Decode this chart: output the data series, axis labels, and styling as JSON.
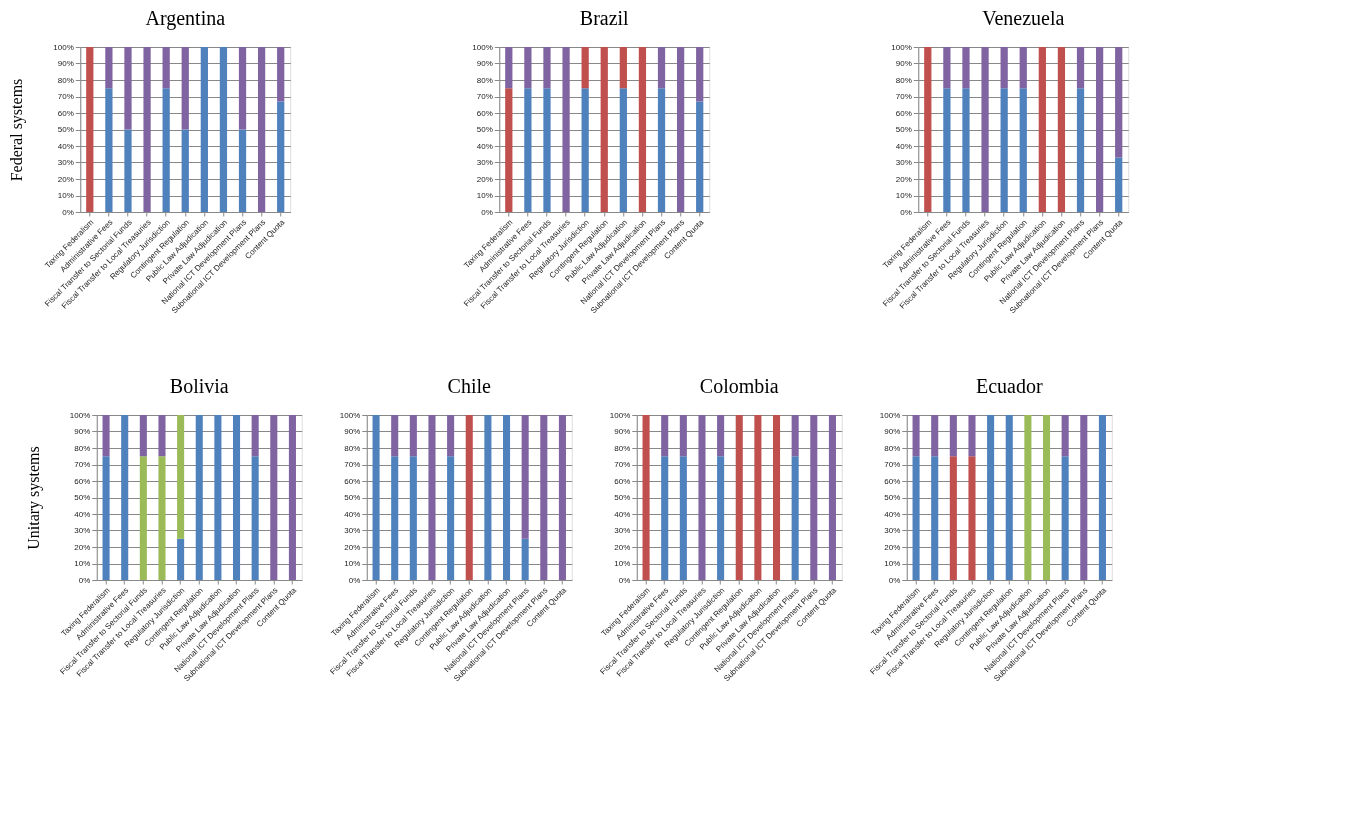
{
  "chart_data": [
    {
      "type": "bar",
      "stacked": true,
      "title": "Argentina",
      "ylabel": "Federal systems",
      "categories": [
        "Taxing Federalism",
        "Administrative Fees",
        "Fiscal Transfer to Sectorial Funds",
        "Fiscal Transfer to Local Treasuries",
        "Regulatory Jurisdiction",
        "Contingent Regulation",
        "Public Law Adjudication",
        "Private Law Adjudication",
        "National ICT Development Plans",
        "Subnational ICT Development Plans",
        "Content Quota"
      ],
      "ylim": [
        0,
        100
      ],
      "yticks": [
        {
          "value": 0,
          "label": "0%"
        },
        {
          "value": 10,
          "label": "10%"
        },
        {
          "value": 20,
          "label": "20%"
        },
        {
          "value": 30,
          "label": "30%"
        },
        {
          "value": 40,
          "label": "40%"
        },
        {
          "value": 50,
          "label": "50%"
        },
        {
          "value": 60,
          "label": "60%"
        },
        {
          "value": 70,
          "label": "70%"
        },
        {
          "value": 80,
          "label": "80%"
        },
        {
          "value": 90,
          "label": "90%"
        },
        {
          "value": 100,
          "label": "100%"
        }
      ],
      "grid": "y",
      "legend": false,
      "series": [
        {
          "color": "#4f81bd",
          "values": [
            null,
            75,
            50,
            null,
            75,
            50,
            100,
            100,
            50,
            null,
            67
          ]
        },
        {
          "color": "#c0504d",
          "values": [
            100,
            null,
            null,
            null,
            null,
            null,
            null,
            null,
            null,
            null,
            null
          ]
        },
        {
          "color": "#8064a2",
          "values": [
            null,
            25,
            50,
            100,
            25,
            50,
            null,
            null,
            50,
            100,
            33
          ]
        }
      ]
    },
    {
      "type": "bar",
      "stacked": true,
      "title": "Brazil",
      "categories": [
        "Taxing Federalism",
        "Administrative Fees",
        "Fiscal Transfer to Sectorial Funds",
        "Fiscal Transfer to Local Treasuries",
        "Regulatory Jurisdiction",
        "Contingent Regulation",
        "Public Law Adjudication",
        "Private Law Adjudication",
        "National ICT Development Plans",
        "Subnational ICT Development Plans",
        "Content Quota"
      ],
      "ylim": [
        0,
        100
      ],
      "yticks": [
        {
          "value": 0,
          "label": "0%"
        },
        {
          "value": 10,
          "label": "10%"
        },
        {
          "value": 20,
          "label": "20%"
        },
        {
          "value": 30,
          "label": "30%"
        },
        {
          "value": 40,
          "label": "40%"
        },
        {
          "value": 50,
          "label": "50%"
        },
        {
          "value": 60,
          "label": "60%"
        },
        {
          "value": 70,
          "label": "70%"
        },
        {
          "value": 80,
          "label": "80%"
        },
        {
          "value": 90,
          "label": "90%"
        },
        {
          "value": 100,
          "label": "100%"
        }
      ],
      "grid": "y",
      "legend": false,
      "series": [
        {
          "color": "#4f81bd",
          "values": [
            null,
            75,
            75,
            null,
            75,
            null,
            75,
            null,
            75,
            null,
            67
          ]
        },
        {
          "color": "#c0504d",
          "values": [
            75,
            null,
            null,
            null,
            25,
            100,
            25,
            100,
            null,
            null,
            null
          ]
        },
        {
          "color": "#8064a2",
          "values": [
            25,
            25,
            25,
            100,
            null,
            null,
            null,
            null,
            25,
            100,
            33
          ]
        }
      ]
    },
    {
      "type": "bar",
      "stacked": true,
      "title": "Venezuela",
      "categories": [
        "Taxing Federalism",
        "Administrative Fees",
        "Fiscal Transfer to Sectorial Funds",
        "Fiscal Transfer to Local Treasuries",
        "Regulatory Jurisdiction",
        "Contingent Regulation",
        "Public Law Adjudication",
        "Private Law Adjudication",
        "National ICT Development Plans",
        "Subnational ICT Development Plans",
        "Content Quota"
      ],
      "ylim": [
        0,
        100
      ],
      "yticks": [
        {
          "value": 0,
          "label": "0%"
        },
        {
          "value": 10,
          "label": "10%"
        },
        {
          "value": 20,
          "label": "20%"
        },
        {
          "value": 30,
          "label": "30%"
        },
        {
          "value": 40,
          "label": "40%"
        },
        {
          "value": 50,
          "label": "50%"
        },
        {
          "value": 60,
          "label": "60%"
        },
        {
          "value": 70,
          "label": "70%"
        },
        {
          "value": 80,
          "label": "80%"
        },
        {
          "value": 90,
          "label": "90%"
        },
        {
          "value": 100,
          "label": "100%"
        }
      ],
      "grid": "y",
      "legend": false,
      "series": [
        {
          "color": "#4f81bd",
          "values": [
            null,
            75,
            75,
            null,
            75,
            75,
            null,
            null,
            75,
            null,
            33
          ]
        },
        {
          "color": "#c0504d",
          "values": [
            100,
            null,
            null,
            null,
            null,
            null,
            100,
            100,
            null,
            null,
            null
          ]
        },
        {
          "color": "#8064a2",
          "values": [
            null,
            25,
            25,
            100,
            25,
            25,
            null,
            null,
            25,
            100,
            67
          ]
        }
      ]
    },
    {
      "type": "bar",
      "stacked": true,
      "title": "Bolivia",
      "ylabel": "Unitary systems",
      "categories": [
        "Taxing Federalism",
        "Administrative Fees",
        "Fiscal Transfer to Sectorial Funds",
        "Fiscal Transfer to Local Treasuries",
        "Regulatory Jurisdiction",
        "Contingent Regulation",
        "Public Law Adjudication",
        "Private Law Adjudication",
        "National ICT Development Plans",
        "Subnational ICT Development Plans",
        "Content Quota"
      ],
      "ylim": [
        0,
        100
      ],
      "yticks": [
        {
          "value": 0,
          "label": "0%"
        },
        {
          "value": 10,
          "label": "10%"
        },
        {
          "value": 20,
          "label": "20%"
        },
        {
          "value": 30,
          "label": "30%"
        },
        {
          "value": 40,
          "label": "40%"
        },
        {
          "value": 50,
          "label": "50%"
        },
        {
          "value": 60,
          "label": "60%"
        },
        {
          "value": 70,
          "label": "70%"
        },
        {
          "value": 80,
          "label": "80%"
        },
        {
          "value": 90,
          "label": "90%"
        },
        {
          "value": 100,
          "label": "100%"
        }
      ],
      "grid": "y",
      "legend": false,
      "series": [
        {
          "color": "#4f81bd",
          "values": [
            75,
            100,
            null,
            null,
            25,
            100,
            100,
            100,
            75,
            null,
            null
          ]
        },
        {
          "color": "#9bbb59",
          "values": [
            null,
            null,
            75,
            75,
            75,
            null,
            null,
            null,
            null,
            null,
            null
          ]
        },
        {
          "color": "#8064a2",
          "values": [
            25,
            null,
            25,
            25,
            null,
            null,
            null,
            null,
            25,
            100,
            100
          ]
        }
      ]
    },
    {
      "type": "bar",
      "stacked": true,
      "title": "Chile",
      "categories": [
        "Taxing Federalism",
        "Administrative Fees",
        "Fiscal Transfer to Sectorial Funds",
        "Fiscal Transfer to Local Treasuries",
        "Regulatory Jurisdiction",
        "Contingent Regulation",
        "Public Law Adjudication",
        "Private Law Adjudication",
        "National ICT Development Plans",
        "Subnational ICT Development Plans",
        "Content Quota"
      ],
      "ylim": [
        0,
        100
      ],
      "yticks": [
        {
          "value": 0,
          "label": "0%"
        },
        {
          "value": 10,
          "label": "10%"
        },
        {
          "value": 20,
          "label": "20%"
        },
        {
          "value": 30,
          "label": "30%"
        },
        {
          "value": 40,
          "label": "40%"
        },
        {
          "value": 50,
          "label": "50%"
        },
        {
          "value": 60,
          "label": "60%"
        },
        {
          "value": 70,
          "label": "70%"
        },
        {
          "value": 80,
          "label": "80%"
        },
        {
          "value": 90,
          "label": "90%"
        },
        {
          "value": 100,
          "label": "100%"
        }
      ],
      "grid": "y",
      "legend": false,
      "series": [
        {
          "color": "#4f81bd",
          "values": [
            100,
            75,
            75,
            null,
            75,
            null,
            100,
            100,
            25,
            null,
            null
          ]
        },
        {
          "color": "#c0504d",
          "values": [
            null,
            null,
            null,
            null,
            null,
            100,
            null,
            null,
            null,
            null,
            null
          ]
        },
        {
          "color": "#8064a2",
          "values": [
            null,
            25,
            25,
            100,
            25,
            null,
            null,
            null,
            75,
            100,
            100
          ]
        }
      ]
    },
    {
      "type": "bar",
      "stacked": true,
      "title": "Colombia",
      "categories": [
        "Taxing Federalism",
        "Administrative Fees",
        "Fiscal Transfer to Sectorial Funds",
        "Fiscal Transfer to Local Treasuries",
        "Regulatory Jurisdiction",
        "Contingent Regulation",
        "Public Law Adjudication",
        "Private Law Adjudication",
        "National ICT Development Plans",
        "Subnational ICT Development Plans",
        "Content Quota"
      ],
      "ylim": [
        0,
        100
      ],
      "yticks": [
        {
          "value": 0,
          "label": "0%"
        },
        {
          "value": 10,
          "label": "10%"
        },
        {
          "value": 20,
          "label": "20%"
        },
        {
          "value": 30,
          "label": "30%"
        },
        {
          "value": 40,
          "label": "40%"
        },
        {
          "value": 50,
          "label": "50%"
        },
        {
          "value": 60,
          "label": "60%"
        },
        {
          "value": 70,
          "label": "70%"
        },
        {
          "value": 80,
          "label": "80%"
        },
        {
          "value": 90,
          "label": "90%"
        },
        {
          "value": 100,
          "label": "100%"
        }
      ],
      "grid": "y",
      "legend": false,
      "series": [
        {
          "color": "#4f81bd",
          "values": [
            null,
            75,
            75,
            null,
            75,
            null,
            null,
            null,
            75,
            null,
            null
          ]
        },
        {
          "color": "#c0504d",
          "values": [
            100,
            null,
            null,
            null,
            null,
            100,
            100,
            100,
            null,
            null,
            null
          ]
        },
        {
          "color": "#8064a2",
          "values": [
            null,
            25,
            25,
            100,
            25,
            null,
            null,
            null,
            25,
            100,
            100
          ]
        }
      ]
    },
    {
      "type": "bar",
      "stacked": true,
      "title": "Ecuador",
      "categories": [
        "Taxing Federalism",
        "Administrative Fees",
        "Fiscal Transfer to Sectorial Funds",
        "Fiscal Transfer to Local Treasuries",
        "Regulatory Jurisdiction",
        "Contingent Regulation",
        "Public Law Adjudication",
        "Private Law Adjudication",
        "National ICT Development Plans",
        "Subnational ICT Development Plans",
        "Content Quota"
      ],
      "ylim": [
        0,
        100
      ],
      "yticks": [
        {
          "value": 0,
          "label": "0%"
        },
        {
          "value": 10,
          "label": "10%"
        },
        {
          "value": 20,
          "label": "20%"
        },
        {
          "value": 30,
          "label": "30%"
        },
        {
          "value": 40,
          "label": "40%"
        },
        {
          "value": 50,
          "label": "50%"
        },
        {
          "value": 60,
          "label": "60%"
        },
        {
          "value": 70,
          "label": "70%"
        },
        {
          "value": 80,
          "label": "80%"
        },
        {
          "value": 90,
          "label": "90%"
        },
        {
          "value": 100,
          "label": "100%"
        }
      ],
      "grid": "y",
      "legend": false,
      "series": [
        {
          "color": "#4f81bd",
          "values": [
            75,
            75,
            null,
            null,
            100,
            100,
            null,
            null,
            75,
            null,
            100
          ]
        },
        {
          "color": "#c0504d",
          "values": [
            null,
            null,
            75,
            75,
            null,
            null,
            null,
            null,
            null,
            null,
            null
          ]
        },
        {
          "color": "#9bbb59",
          "values": [
            null,
            null,
            null,
            null,
            null,
            null,
            100,
            100,
            null,
            null,
            null
          ]
        },
        {
          "color": "#8064a2",
          "values": [
            25,
            25,
            25,
            25,
            null,
            null,
            null,
            null,
            25,
            100,
            null
          ]
        }
      ]
    }
  ]
}
